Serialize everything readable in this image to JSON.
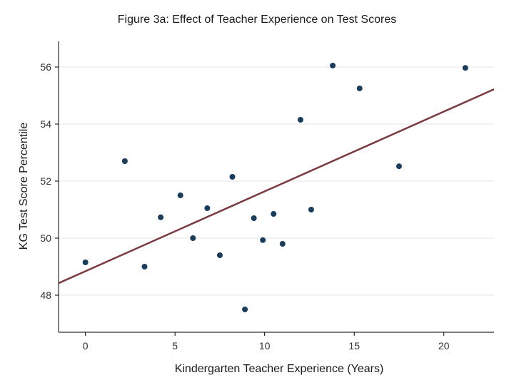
{
  "chart_data": {
    "type": "scatter",
    "title": "Figure 3a: Effect of Teacher Experience on Test Scores",
    "xlabel": "Kindergarten Teacher Experience (Years)",
    "ylabel": "KG Test Score Percentile",
    "xlim": [
      -1.5,
      22.8
    ],
    "ylim": [
      46.7,
      56.9
    ],
    "xticks": [
      0,
      5,
      10,
      15,
      20
    ],
    "yticks": [
      48,
      50,
      52,
      54,
      56
    ],
    "grid": "horizontal",
    "colors": {
      "points": "#1a3d5c",
      "fit_line": "#7a3a3f"
    },
    "points": [
      {
        "x": 0.0,
        "y": 49.15
      },
      {
        "x": 2.2,
        "y": 52.7
      },
      {
        "x": 3.3,
        "y": 49.0
      },
      {
        "x": 4.2,
        "y": 50.73
      },
      {
        "x": 5.3,
        "y": 51.5
      },
      {
        "x": 6.0,
        "y": 50.0
      },
      {
        "x": 6.8,
        "y": 51.05
      },
      {
        "x": 7.5,
        "y": 49.4
      },
      {
        "x": 8.2,
        "y": 52.15
      },
      {
        "x": 8.9,
        "y": 47.5
      },
      {
        "x": 9.4,
        "y": 50.7
      },
      {
        "x": 9.9,
        "y": 49.93
      },
      {
        "x": 10.5,
        "y": 50.85
      },
      {
        "x": 11.0,
        "y": 49.8
      },
      {
        "x": 12.0,
        "y": 54.15
      },
      {
        "x": 12.6,
        "y": 51.0
      },
      {
        "x": 13.8,
        "y": 56.05
      },
      {
        "x": 15.3,
        "y": 55.25
      },
      {
        "x": 17.5,
        "y": 52.52
      },
      {
        "x": 21.2,
        "y": 55.97
      }
    ],
    "fit_line": {
      "x": [
        -1.5,
        22.8
      ],
      "y": [
        48.42,
        55.22
      ]
    }
  }
}
